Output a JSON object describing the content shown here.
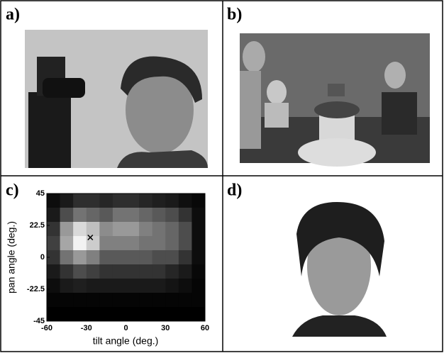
{
  "panels": [
    {
      "label": "a)"
    },
    {
      "label": "b)"
    },
    {
      "label": "c)"
    },
    {
      "label": "d)"
    }
  ],
  "chart_data": {
    "type": "heatmap",
    "x_label": "tilt angle (deg.)",
    "y_label": "pan angle (deg.)",
    "xlim": [
      -60,
      60
    ],
    "ylim": [
      -45,
      45
    ],
    "xticks": [
      -60,
      -30,
      0,
      30,
      60
    ],
    "yticks": [
      -45,
      -22.5,
      0,
      22.5,
      45
    ],
    "xbins": [
      -60,
      -50,
      -40,
      -30,
      -20,
      -10,
      0,
      10,
      20,
      30,
      40,
      50,
      60
    ],
    "ybins": [
      45,
      35,
      25,
      15,
      5,
      -5,
      -15,
      -25,
      -35,
      -45
    ],
    "z": [
      [
        0.05,
        0.1,
        0.18,
        0.18,
        0.15,
        0.18,
        0.18,
        0.15,
        0.12,
        0.1,
        0.06,
        0.03
      ],
      [
        0.1,
        0.3,
        0.45,
        0.4,
        0.35,
        0.45,
        0.45,
        0.4,
        0.35,
        0.3,
        0.2,
        0.05
      ],
      [
        0.2,
        0.6,
        0.85,
        0.75,
        0.55,
        0.6,
        0.6,
        0.5,
        0.45,
        0.4,
        0.3,
        0.05
      ],
      [
        0.25,
        0.65,
        0.95,
        0.8,
        0.5,
        0.5,
        0.5,
        0.45,
        0.45,
        0.4,
        0.3,
        0.05
      ],
      [
        0.2,
        0.45,
        0.6,
        0.5,
        0.35,
        0.35,
        0.35,
        0.35,
        0.3,
        0.3,
        0.2,
        0.05
      ],
      [
        0.1,
        0.2,
        0.3,
        0.25,
        0.2,
        0.2,
        0.2,
        0.2,
        0.2,
        0.15,
        0.1,
        0.03
      ],
      [
        0.05,
        0.1,
        0.12,
        0.1,
        0.1,
        0.1,
        0.1,
        0.1,
        0.1,
        0.08,
        0.05,
        0.02
      ],
      [
        0.02,
        0.02,
        0.02,
        0.02,
        0.02,
        0.02,
        0.02,
        0.02,
        0.02,
        0.02,
        0.02,
        0.02
      ],
      [
        0,
        0,
        0,
        0,
        0,
        0,
        0,
        0,
        0,
        0,
        0,
        0
      ]
    ],
    "marker": {
      "x": -27,
      "y": 14
    }
  }
}
